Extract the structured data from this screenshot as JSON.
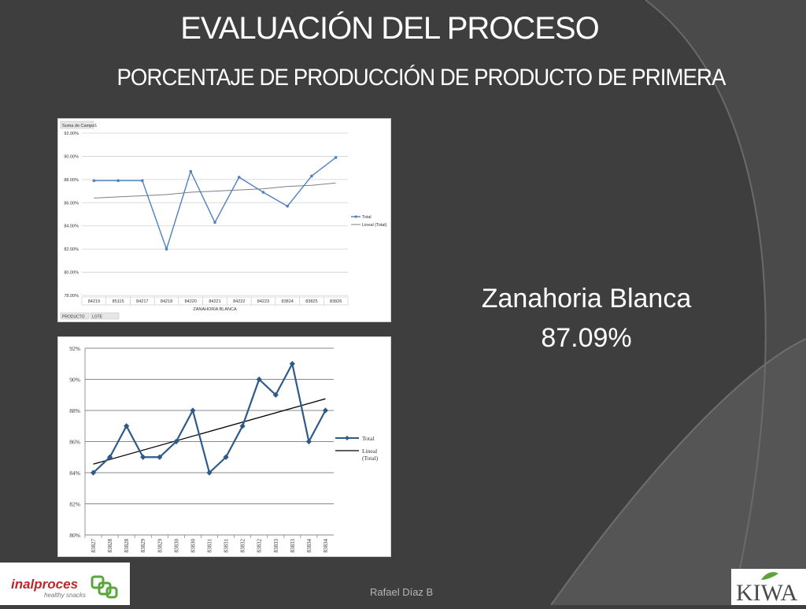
{
  "slide": {
    "title": "EVALUACIÓN DEL PROCESO",
    "subtitle": "PORCENTAJE DE PRODUCCIÓN DE PRODUCTO DE PRIMERA",
    "label_name": "Zanahoria Blanca",
    "label_value": "87.09%",
    "footer_author": "Rafael Díaz B",
    "logo_left_name": "inalproces",
    "logo_left_tagline": "healthy snacks",
    "logo_right_name": "KIWA"
  },
  "colors": {
    "background": "#3e3e3e",
    "series_line": "#4f81bd",
    "series_line_2": "#2e5a8a",
    "trend_1": "#7f7f7f",
    "trend_2": "#000000",
    "logo_red": "#c0262c",
    "logo_green": "#5aa63a"
  },
  "chart_data": [
    {
      "type": "line",
      "field_button": "Suma de Campo1",
      "categories": [
        "84219",
        "85115",
        "84217",
        "84218",
        "84220",
        "84221",
        "84222",
        "84223",
        "83824",
        "83825",
        "83826"
      ],
      "series": [
        {
          "name": "Total",
          "values": [
            87.9,
            87.9,
            87.9,
            82.0,
            88.7,
            84.3,
            88.2,
            86.9,
            85.7,
            88.3,
            89.9
          ]
        },
        {
          "name": "Lineal (Total)",
          "values": [
            86.4,
            86.5,
            86.6,
            86.7,
            86.9,
            87.0,
            87.1,
            87.2,
            87.4,
            87.5,
            87.7
          ],
          "trendline": true
        }
      ],
      "xlabel": "ZANAHORIA BLANCA",
      "ylabel": "",
      "ylim": [
        78,
        92
      ],
      "yticks": [
        "78.00%",
        "80.00%",
        "82.00%",
        "84.00%",
        "86.00%",
        "88.00%",
        "90.00%",
        "92.00%"
      ],
      "filter_buttons": [
        "PRODUCTO",
        "LOTE"
      ],
      "grid": true,
      "legend": "right"
    },
    {
      "type": "line",
      "categories": [
        "83827",
        "83828",
        "83828",
        "83829",
        "83829",
        "83830",
        "83830",
        "83831",
        "83831",
        "83832",
        "83832",
        "83833",
        "83833",
        "83834",
        "83834"
      ],
      "series": [
        {
          "name": "Total",
          "values": [
            84,
            85,
            87,
            85,
            85,
            86,
            88,
            84,
            85,
            87,
            90,
            89,
            91,
            86,
            88
          ]
        },
        {
          "name": "Lineal (Total)",
          "values": [
            84.55,
            84.85,
            85.15,
            85.45,
            85.75,
            86.05,
            86.35,
            86.65,
            86.95,
            87.25,
            87.55,
            87.85,
            88.15,
            88.45,
            88.75
          ],
          "trendline": true
        }
      ],
      "xlabel": "",
      "ylabel": "",
      "ylim": [
        80,
        92
      ],
      "yticks": [
        "80%",
        "82%",
        "84%",
        "86%",
        "88%",
        "90%",
        "92%"
      ],
      "grid": true,
      "legend": "right"
    }
  ]
}
